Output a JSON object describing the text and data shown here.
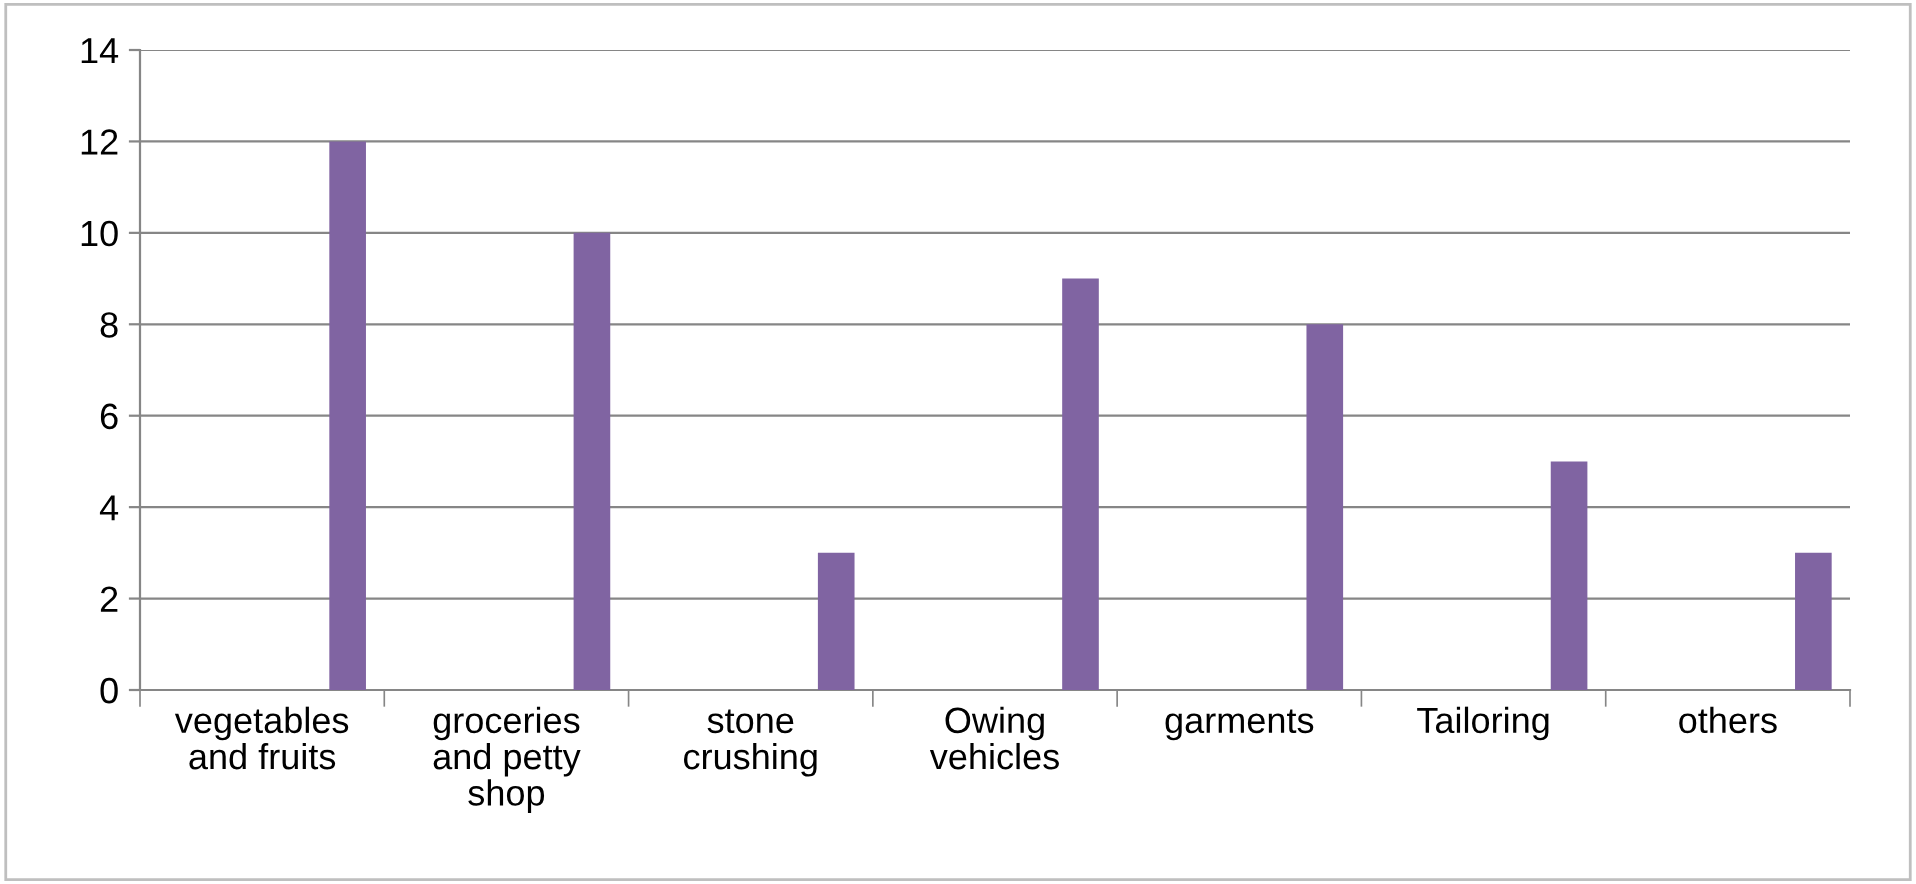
{
  "chart_data": {
    "type": "bar",
    "categories": [
      "vegetables\nand fruits",
      "groceries\nand petty\nshop",
      "stone\ncrushing",
      "Owing\nvehicles",
      "garments",
      "Tailoring",
      "others"
    ],
    "series": [
      {
        "color": "#8064a2",
        "values": [
          12,
          10,
          3,
          9,
          8,
          5,
          3
        ]
      }
    ],
    "ylim": [
      0,
      14
    ],
    "yticks": [
      0,
      2,
      4,
      6,
      8,
      10,
      12,
      14
    ],
    "grid": "y",
    "legend": false
  }
}
